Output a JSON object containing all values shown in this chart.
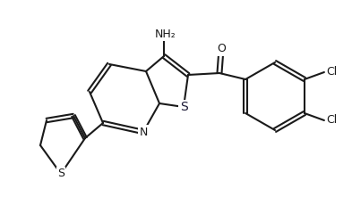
{
  "background_color": "#ffffff",
  "line_color": "#1a1a1a",
  "figsize": [
    3.93,
    2.21
  ],
  "dpi": 100,
  "lw": 1.5,
  "bond_lw": 1.5,
  "font_size": 9,
  "atoms": {
    "NH2_label": "NH₂",
    "O_label": "O",
    "N_label": "N",
    "S1_label": "S",
    "S2_label": "S",
    "Cl1_label": "Cl",
    "Cl2_label": "Cl"
  }
}
